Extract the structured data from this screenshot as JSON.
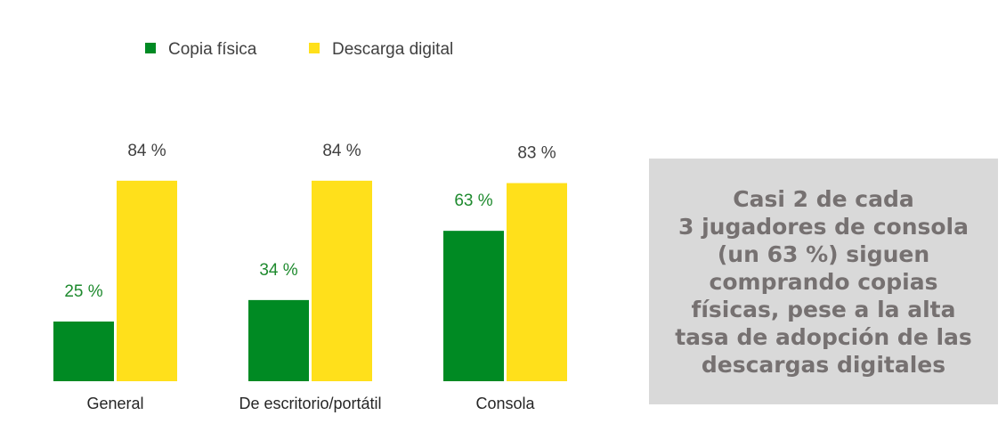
{
  "chart_data": {
    "type": "bar",
    "categories": [
      "General",
      "De escritorio/portátil",
      "Consola"
    ],
    "series": [
      {
        "name": "Copia física",
        "values": [
          25,
          34,
          63
        ],
        "labels": [
          "25 %",
          "34 %",
          "63 %"
        ],
        "color": "#008a23",
        "label_color": "#1e8a2e"
      },
      {
        "name": "Descarga digital",
        "values": [
          84,
          84,
          83
        ],
        "labels": [
          "84 %",
          "84 %",
          "83 %"
        ],
        "color": "#ffe01b",
        "label_color": "#404040"
      }
    ],
    "ylim": [
      0,
      100
    ],
    "legend": "top-left",
    "grid": false
  },
  "callout": {
    "lines": [
      "Casi 2 de cada",
      "3 jugadores de consola",
      "(un 63 %) siguen",
      "comprando copias",
      "físicas, pese a la alta",
      "tasa de adopción de las",
      "descargas digitales"
    ]
  }
}
